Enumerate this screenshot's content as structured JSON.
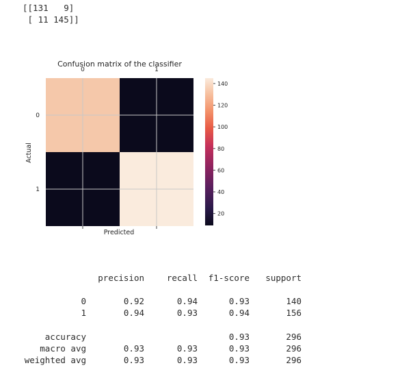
{
  "output": {
    "matrix_print_lines": [
      "[[131   9]",
      " [ 11 145]]"
    ]
  },
  "chart_data": {
    "type": "heatmap",
    "title": "Confusion matrix of the classifier",
    "xlabel": "Predicted",
    "ylabel": "Actual",
    "x_categories": [
      "0",
      "1"
    ],
    "y_categories": [
      "0",
      "1"
    ],
    "values": [
      [
        131,
        9
      ],
      [
        11,
        145
      ]
    ],
    "colorbar": {
      "ticks": [
        "20",
        "40",
        "60",
        "80",
        "100",
        "120",
        "140"
      ],
      "tick_values": [
        20,
        40,
        60,
        80,
        100,
        120,
        140
      ],
      "vmin": 9,
      "vmax": 145
    },
    "colors": {
      "low": "#0b0a1c",
      "high": "#faebdd",
      "cell_00": "#f4c2a2",
      "grid": "#c8c8c8"
    },
    "x_tick_position": "top",
    "grid": true
  },
  "report": {
    "headers": [
      "precision",
      "recall",
      "f1-score",
      "support"
    ],
    "rows": [
      {
        "label": "0",
        "precision": "0.92",
        "recall": "0.94",
        "f1": "0.93",
        "support": "140"
      },
      {
        "label": "1",
        "precision": "0.94",
        "recall": "0.93",
        "f1": "0.94",
        "support": "156"
      },
      {
        "label": "accuracy",
        "precision": "",
        "recall": "",
        "f1": "0.93",
        "support": "296"
      },
      {
        "label": "macro avg",
        "precision": "0.93",
        "recall": "0.93",
        "f1": "0.93",
        "support": "296"
      },
      {
        "label": "weighted avg",
        "precision": "0.93",
        "recall": "0.93",
        "f1": "0.93",
        "support": "296"
      }
    ]
  }
}
